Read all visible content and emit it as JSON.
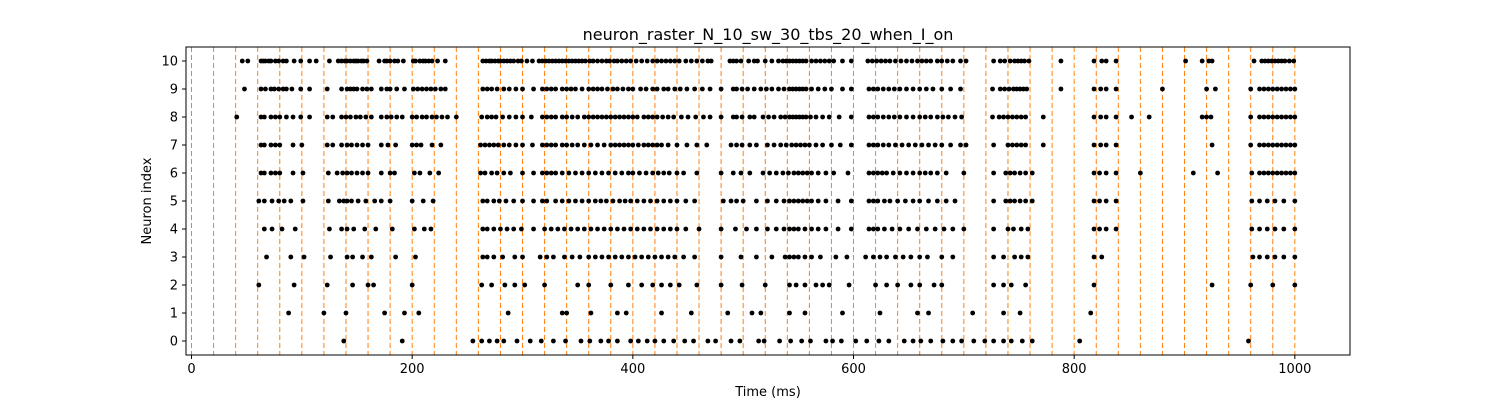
{
  "chart_data": {
    "type": "scatter",
    "title": "neuron_raster_N_10_sw_30_tbs_20_when_I_on",
    "xlabel": "Time (ms)",
    "ylabel": "Neuron index",
    "xlim": [
      -5,
      1050
    ],
    "ylim": [
      -0.5,
      10.5
    ],
    "x_ticks": [
      0,
      200,
      400,
      600,
      800,
      1000
    ],
    "y_ticks": [
      0,
      1,
      2,
      3,
      4,
      5,
      6,
      7,
      8,
      9,
      10
    ],
    "grid": false,
    "legend": "none",
    "colors": {
      "spike": "#000000",
      "window_line": "#ff7f0e"
    },
    "window_lines_x": [
      0,
      20,
      40,
      60,
      80,
      100,
      120,
      140,
      160,
      180,
      200,
      220,
      240,
      260,
      280,
      300,
      320,
      340,
      360,
      380,
      400,
      420,
      440,
      460,
      480,
      500,
      520,
      540,
      560,
      580,
      600,
      620,
      640,
      660,
      680,
      700,
      720,
      740,
      760,
      780,
      800,
      820,
      840,
      860,
      880,
      900,
      920,
      940,
      960,
      980,
      1000
    ],
    "spikes": [
      {
        "neuron": 10,
        "times": [
          46,
          51,
          63,
          65,
          67,
          70,
          72,
          76,
          79,
          83,
          86,
          93,
          99,
          107,
          113,
          125,
          133,
          136,
          139,
          141,
          144,
          147,
          149,
          151,
          154,
          156,
          159,
          170,
          175,
          177,
          180,
          184,
          187,
          192,
          201,
          203,
          207,
          210,
          212,
          215,
          218,
          223,
          230,
          264,
          267,
          270,
          272,
          275,
          278,
          280,
          283,
          286,
          289,
          292,
          296,
          299,
          304,
          309,
          315,
          318,
          321,
          324,
          327,
          330,
          333,
          336,
          339,
          342,
          345,
          348,
          351,
          354,
          357,
          361,
          364,
          368,
          372,
          376,
          379,
          383,
          386,
          390,
          394,
          398,
          403,
          408,
          413,
          418,
          422,
          426,
          430,
          434,
          438,
          442,
          448,
          453,
          458,
          463,
          468,
          471,
          488,
          491,
          494,
          498,
          505,
          510,
          513,
          520,
          526,
          532,
          536,
          539,
          542,
          545,
          548,
          551,
          554,
          557,
          562,
          566,
          570,
          574,
          578,
          582,
          590,
          598,
          613,
          617,
          621,
          625,
          629,
          633,
          638,
          643,
          648,
          653,
          658,
          662,
          666,
          670,
          676,
          680,
          685,
          690,
          697,
          702,
          727,
          733,
          737,
          742,
          746,
          749,
          752,
          755,
          759,
          788,
          818,
          825,
          829,
          838,
          901,
          916,
          922,
          925,
          963,
          970,
          973,
          976,
          979,
          982,
          985,
          988,
          991,
          995,
          999
        ]
      },
      {
        "neuron": 9,
        "times": [
          48,
          63,
          67,
          72,
          75,
          79,
          83,
          86,
          91,
          99,
          107,
          123,
          136,
          141,
          144,
          147,
          150,
          155,
          159,
          163,
          172,
          177,
          180,
          186,
          193,
          201,
          205,
          209,
          213,
          217,
          221,
          226,
          230,
          264,
          268,
          272,
          277,
          283,
          288,
          294,
          300,
          310,
          318,
          322,
          326,
          330,
          336,
          340,
          344,
          348,
          354,
          360,
          364,
          368,
          372,
          377,
          382,
          386,
          391,
          396,
          400,
          407,
          412,
          418,
          422,
          428,
          432,
          438,
          443,
          449,
          456,
          463,
          470,
          480,
          491,
          494,
          499,
          504,
          510,
          516,
          521,
          526,
          532,
          537,
          542,
          545,
          548,
          551,
          554,
          557,
          562,
          568,
          574,
          580,
          590,
          598,
          614,
          618,
          622,
          627,
          632,
          637,
          642,
          648,
          654,
          660,
          666,
          672,
          680,
          688,
          697,
          726,
          733,
          737,
          741,
          745,
          748,
          751,
          754,
          757,
          788,
          818,
          824,
          829,
          838,
          880,
          920,
          928,
          960,
          968,
          972,
          976,
          980,
          984,
          988,
          992,
          996,
          1000
        ]
      },
      {
        "neuron": 8,
        "times": [
          41,
          63,
          66,
          72,
          76,
          80,
          86,
          92,
          99,
          107,
          123,
          128,
          136,
          140,
          144,
          149,
          153,
          158,
          163,
          172,
          177,
          181,
          186,
          191,
          200,
          204,
          209,
          213,
          218,
          222,
          227,
          232,
          240,
          263,
          268,
          272,
          276,
          282,
          288,
          294,
          300,
          308,
          318,
          322,
          326,
          330,
          336,
          340,
          345,
          350,
          356,
          360,
          364,
          368,
          372,
          376,
          380,
          384,
          388,
          392,
          396,
          400,
          404,
          410,
          414,
          418,
          422,
          427,
          432,
          437,
          444,
          450,
          457,
          464,
          470,
          480,
          491,
          494,
          499,
          506,
          510,
          518,
          523,
          528,
          534,
          538,
          542,
          545,
          548,
          551,
          554,
          557,
          561,
          566,
          572,
          578,
          587,
          598,
          614,
          618,
          622,
          627,
          632,
          637,
          642,
          648,
          654,
          660,
          665,
          670,
          676,
          681,
          686,
          692,
          698,
          726,
          732,
          736,
          740,
          744,
          748,
          752,
          756,
          772,
          818,
          824,
          829,
          838,
          852,
          868,
          916,
          920,
          924,
          960,
          968,
          972,
          976,
          980,
          984,
          988,
          992,
          996,
          1000
        ]
      },
      {
        "neuron": 7,
        "times": [
          63,
          66,
          72,
          76,
          80,
          92,
          100,
          123,
          128,
          136,
          141,
          145,
          150,
          155,
          160,
          172,
          178,
          185,
          200,
          204,
          208,
          218,
          226,
          262,
          266,
          270,
          274,
          278,
          283,
          288,
          294,
          300,
          309,
          318,
          322,
          326,
          330,
          336,
          340,
          345,
          350,
          356,
          362,
          368,
          374,
          380,
          384,
          388,
          392,
          396,
          400,
          405,
          410,
          414,
          418,
          422,
          426,
          432,
          440,
          449,
          458,
          467,
          489,
          494,
          499,
          506,
          512,
          522,
          528,
          534,
          539,
          544,
          548,
          552,
          556,
          560,
          566,
          572,
          580,
          588,
          598,
          614,
          618,
          622,
          627,
          632,
          638,
          644,
          650,
          656,
          662,
          668,
          674,
          680,
          688,
          697,
          702,
          727,
          740,
          744,
          748,
          752,
          756,
          772,
          818,
          824,
          829,
          838,
          925,
          960,
          968,
          972,
          976,
          980,
          984,
          988,
          992,
          996,
          1000
        ]
      },
      {
        "neuron": 6,
        "times": [
          63,
          66,
          72,
          76,
          80,
          92,
          101,
          124,
          132,
          137,
          141,
          145,
          150,
          155,
          160,
          172,
          180,
          184,
          202,
          207,
          216,
          224,
          262,
          266,
          272,
          277,
          283,
          289,
          300,
          310,
          318,
          322,
          326,
          330,
          336,
          342,
          348,
          354,
          360,
          366,
          372,
          378,
          384,
          390,
          396,
          400,
          406,
          412,
          418,
          423,
          428,
          433,
          440,
          446,
          458,
          480,
          491,
          498,
          506,
          518,
          524,
          530,
          536,
          541,
          546,
          550,
          554,
          558,
          562,
          568,
          575,
          582,
          595,
          614,
          618,
          622,
          626,
          630,
          636,
          642,
          648,
          654,
          660,
          665,
          670,
          676,
          684,
          700,
          727,
          738,
          742,
          746,
          751,
          756,
          762,
          818,
          823,
          829,
          838,
          860,
          908,
          930,
          961,
          968,
          972,
          976,
          980,
          984,
          988,
          992,
          996,
          1000
        ]
      },
      {
        "neuron": 5,
        "times": [
          61,
          66,
          73,
          79,
          84,
          90,
          101,
          124,
          134,
          138,
          141,
          145,
          151,
          158,
          166,
          172,
          180,
          200,
          210,
          219,
          264,
          268,
          274,
          279,
          285,
          292,
          300,
          310,
          318,
          322,
          330,
          336,
          342,
          348,
          354,
          360,
          366,
          371,
          376,
          382,
          388,
          393,
          398,
          404,
          410,
          416,
          422,
          428,
          434,
          440,
          448,
          456,
          482,
          489,
          494,
          500,
          512,
          522,
          530,
          537,
          542,
          546,
          550,
          554,
          558,
          562,
          568,
          575,
          586,
          598,
          614,
          618,
          622,
          628,
          633,
          640,
          647,
          654,
          660,
          668,
          676,
          684,
          692,
          727,
          738,
          742,
          746,
          751,
          756,
          762,
          818,
          823,
          829,
          838,
          961,
          968,
          975,
          982,
          990,
          1000
        ]
      },
      {
        "neuron": 4,
        "times": [
          66,
          73,
          82,
          94,
          125,
          136,
          141,
          147,
          157,
          167,
          182,
          202,
          211,
          217,
          264,
          268,
          274,
          280,
          286,
          292,
          299,
          310,
          320,
          326,
          332,
          338,
          344,
          350,
          356,
          362,
          368,
          374,
          380,
          386,
          392,
          398,
          404,
          410,
          416,
          422,
          428,
          434,
          440,
          448,
          460,
          480,
          493,
          503,
          512,
          522,
          530,
          537,
          542,
          546,
          550,
          556,
          562,
          568,
          575,
          586,
          598,
          614,
          618,
          622,
          628,
          635,
          642,
          650,
          658,
          666,
          674,
          682,
          690,
          700,
          727,
          740,
          745,
          752,
          758,
          818,
          823,
          829,
          838,
          961,
          968,
          975,
          982,
          990,
          1000
        ]
      },
      {
        "neuron": 3,
        "times": [
          68,
          90,
          102,
          126,
          141,
          146,
          155,
          163,
          185,
          203,
          264,
          268,
          274,
          282,
          293,
          300,
          316,
          322,
          328,
          338,
          345,
          352,
          360,
          366,
          372,
          378,
          384,
          390,
          396,
          402,
          408,
          414,
          420,
          426,
          432,
          438,
          446,
          456,
          480,
          498,
          512,
          526,
          538,
          542,
          546,
          550,
          556,
          562,
          570,
          584,
          594,
          611,
          618,
          624,
          630,
          638,
          645,
          652,
          660,
          667,
          680,
          690,
          727,
          736,
          746,
          752,
          758,
          818,
          825,
          962,
          968,
          975,
          982,
          990,
          1000
        ]
      },
      {
        "neuron": 2,
        "times": [
          61,
          93,
          123,
          146,
          160,
          165,
          200,
          263,
          272,
          284,
          293,
          302,
          320,
          350,
          360,
          380,
          396,
          408,
          418,
          426,
          434,
          442,
          458,
          480,
          499,
          520,
          542,
          548,
          556,
          566,
          572,
          578,
          596,
          620,
          630,
          640,
          652,
          660,
          673,
          680,
          727,
          736,
          743,
          756,
          818,
          925,
          960,
          980,
          1000
        ]
      },
      {
        "neuron": 1,
        "times": [
          88,
          120,
          140,
          175,
          193,
          206,
          287,
          336,
          340,
          362,
          386,
          394,
          426,
          453,
          486,
          508,
          516,
          542,
          556,
          590,
          624,
          658,
          668,
          708,
          736,
          751,
          815
        ]
      },
      {
        "neuron": 0,
        "times": [
          138,
          191,
          255,
          263,
          270,
          277,
          283,
          295,
          307,
          317,
          328,
          339,
          353,
          361,
          371,
          378,
          386,
          398,
          405,
          413,
          420,
          428,
          437,
          447,
          455,
          468,
          475,
          489,
          497,
          514,
          519,
          533,
          543,
          553,
          561,
          575,
          581,
          589,
          602,
          612,
          623,
          632,
          646,
          654,
          661,
          670,
          681,
          690,
          698,
          709,
          719,
          727,
          736,
          743,
          753,
          762,
          805,
          958
        ]
      }
    ]
  }
}
